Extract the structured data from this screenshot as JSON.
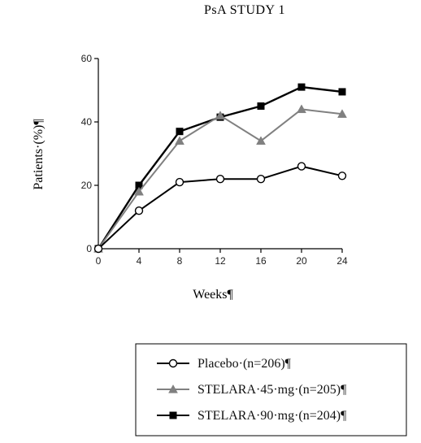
{
  "chart_data": {
    "type": "line",
    "title": "PsA STUDY 1",
    "xlabel": "Weeks¶",
    "ylabel": "Patients·(%)¶",
    "x": [
      0,
      4,
      8,
      12,
      16,
      20,
      24
    ],
    "xlim": [
      0,
      24
    ],
    "ylim": [
      0,
      60
    ],
    "xticks": [
      "0",
      "4",
      "8",
      "12",
      "16",
      "20",
      "24"
    ],
    "yticks": [
      "0",
      "20",
      "40",
      "60"
    ],
    "grid": false,
    "legend_position": "bottom-right",
    "series": [
      {
        "name": "Placebo·(n=206)¶",
        "marker": "circle-open",
        "color": "#000000",
        "values": [
          0,
          12,
          21,
          22,
          22,
          26,
          23
        ]
      },
      {
        "name": "STELARA·45·mg·(n=205)¶",
        "marker": "triangle",
        "color": "#808080",
        "values": [
          0,
          18,
          34,
          42,
          34,
          44,
          42.5
        ]
      },
      {
        "name": "STELARA·90·mg·(n=204)¶",
        "marker": "square",
        "color": "#000000",
        "values": [
          0,
          20,
          37,
          41.5,
          45,
          51,
          49.5
        ]
      }
    ]
  }
}
